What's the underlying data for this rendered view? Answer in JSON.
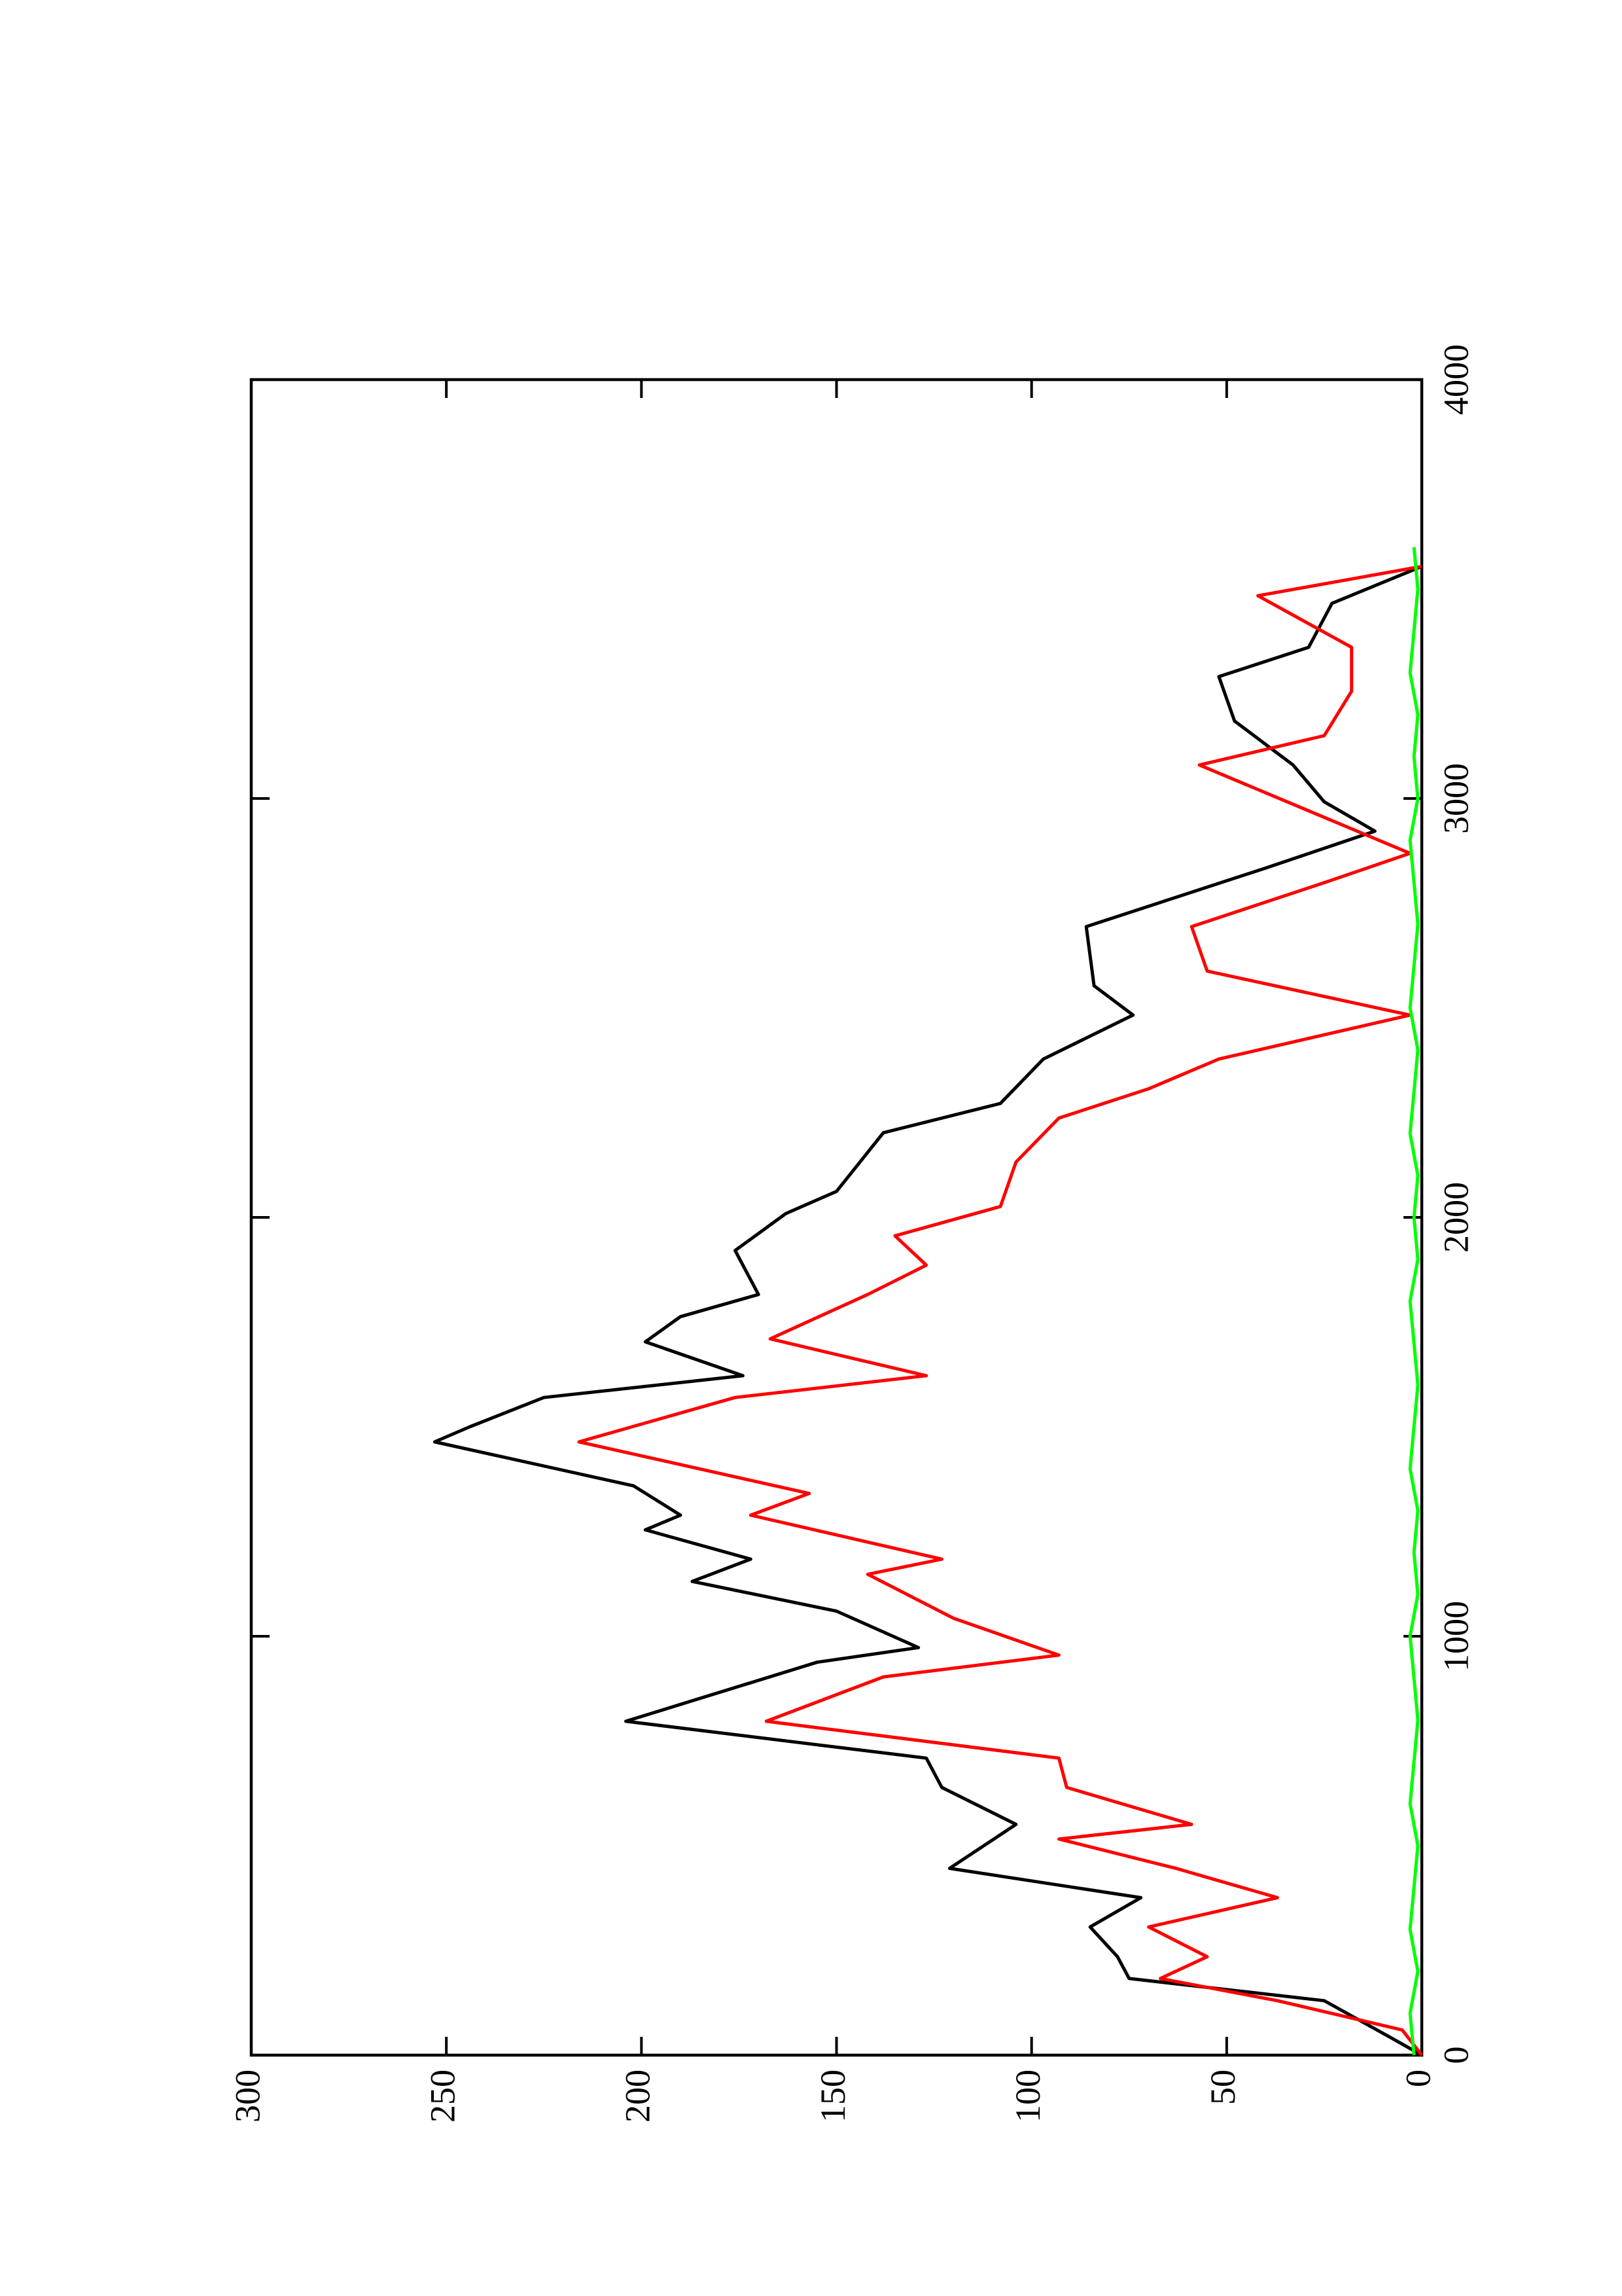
{
  "chart_data": {
    "type": "line",
    "xlim": [
      0,
      4000
    ],
    "xticks": [
      0,
      1000,
      2000,
      3000,
      4000
    ],
    "ylim": [
      0,
      300
    ],
    "yticks": [
      0,
      50,
      100,
      150,
      200,
      250,
      300
    ],
    "series": [
      {
        "color": "#000000",
        "x": [
          0,
          42,
          130,
          183,
          235,
          306,
          376,
          446,
          551,
          639,
          709,
          797,
          938,
          973,
          1060,
          1131,
          1184,
          1254,
          1289,
          1359,
          1464,
          1500,
          1570,
          1622,
          1703,
          1763,
          1816,
          1921,
          2009,
          2062,
          2202,
          2272,
          2378,
          2483,
          2553,
          2694,
          2764,
          2834,
          2922,
          2992,
          3080,
          3185,
          3291,
          3361,
          3466,
          3554
        ],
        "values": [
          0,
          8,
          25,
          75,
          78,
          85,
          72,
          121,
          104,
          123,
          127,
          204,
          155,
          129,
          150,
          187,
          172,
          199,
          190,
          202,
          253,
          244,
          225,
          174,
          199,
          190,
          170,
          176,
          163,
          150,
          138,
          108,
          97,
          74,
          84,
          86,
          63,
          40,
          12,
          25,
          33,
          48,
          52,
          29,
          23,
          0
        ]
      },
      {
        "color": "#ff0000",
        "x": [
          0,
          60,
          130,
          183,
          235,
          306,
          376,
          446,
          516,
          551,
          639,
          709,
          797,
          903,
          955,
          1043,
          1148,
          1184,
          1289,
          1341,
          1464,
          1570,
          1622,
          1710,
          1816,
          1886,
          1956,
          2026,
          2132,
          2237,
          2307,
          2378,
          2483,
          2588,
          2694,
          2799,
          2869,
          3080,
          3150,
          3256,
          3361,
          3484,
          3554
        ],
        "values": [
          0,
          5,
          37,
          67,
          55,
          70,
          37,
          63,
          93,
          59,
          91,
          93,
          168,
          138,
          93,
          120,
          142,
          123,
          172,
          157,
          216,
          176,
          127,
          167,
          142,
          127,
          135,
          108,
          104,
          93,
          70,
          52,
          3,
          55,
          59,
          25,
          3,
          57,
          25,
          18,
          18,
          42,
          0
        ]
      },
      {
        "color": "#00ff00",
        "x": [
          0,
          100,
          200,
          300,
          400,
          500,
          600,
          700,
          800,
          900,
          1000,
          1100,
          1200,
          1300,
          1400,
          1500,
          1600,
          1700,
          1800,
          1900,
          2000,
          2100,
          2200,
          2300,
          2400,
          2500,
          2600,
          2700,
          2800,
          2900,
          3000,
          3100,
          3200,
          3300,
          3400,
          3500,
          3600
        ],
        "values": [
          2,
          3,
          1,
          3,
          2,
          1,
          3,
          2,
          1,
          2,
          3,
          1,
          2,
          1,
          3,
          2,
          1,
          2,
          3,
          1,
          2,
          1,
          3,
          2,
          1,
          3,
          2,
          1,
          2,
          3,
          1,
          2,
          1,
          3,
          2,
          1,
          2
        ]
      }
    ]
  }
}
